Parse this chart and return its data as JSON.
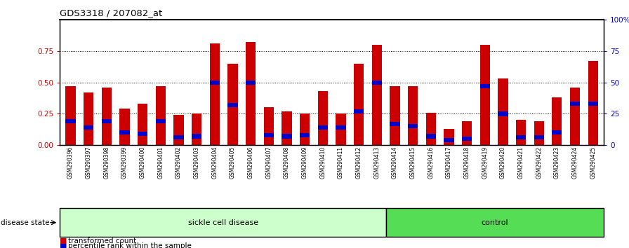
{
  "title": "GDS3318 / 207082_at",
  "samples": [
    "GSM290396",
    "GSM290397",
    "GSM290398",
    "GSM290399",
    "GSM290400",
    "GSM290401",
    "GSM290402",
    "GSM290403",
    "GSM290404",
    "GSM290405",
    "GSM290406",
    "GSM290407",
    "GSM290408",
    "GSM290409",
    "GSM290410",
    "GSM290411",
    "GSM290412",
    "GSM290413",
    "GSM290414",
    "GSM290415",
    "GSM290416",
    "GSM290417",
    "GSM290418",
    "GSM290419",
    "GSM290420",
    "GSM290421",
    "GSM290422",
    "GSM290423",
    "GSM290424",
    "GSM290425"
  ],
  "red_values": [
    0.47,
    0.42,
    0.46,
    0.29,
    0.33,
    0.47,
    0.24,
    0.25,
    0.81,
    0.65,
    0.82,
    0.3,
    0.27,
    0.25,
    0.43,
    0.25,
    0.65,
    0.8,
    0.47,
    0.47,
    0.26,
    0.13,
    0.19,
    0.8,
    0.53,
    0.2,
    0.19,
    0.38,
    0.46,
    0.67
  ],
  "blue_values": [
    0.19,
    0.14,
    0.19,
    0.1,
    0.09,
    0.19,
    0.06,
    0.07,
    0.5,
    0.32,
    0.5,
    0.08,
    0.07,
    0.08,
    0.14,
    0.14,
    0.27,
    0.5,
    0.17,
    0.15,
    0.07,
    0.04,
    0.05,
    0.47,
    0.25,
    0.06,
    0.06,
    0.1,
    0.33,
    0.33
  ],
  "sickle_count": 18,
  "control_count": 12,
  "bar_color": "#cc0000",
  "blue_color": "#0000cc",
  "sickle_color": "#ccffcc",
  "control_color": "#55dd55",
  "label_color": "#cc0000",
  "right_axis_color": "#0000cc",
  "background_color": "#ffffff",
  "plot_bg_color": "#ffffff",
  "grid_color": "#000000"
}
